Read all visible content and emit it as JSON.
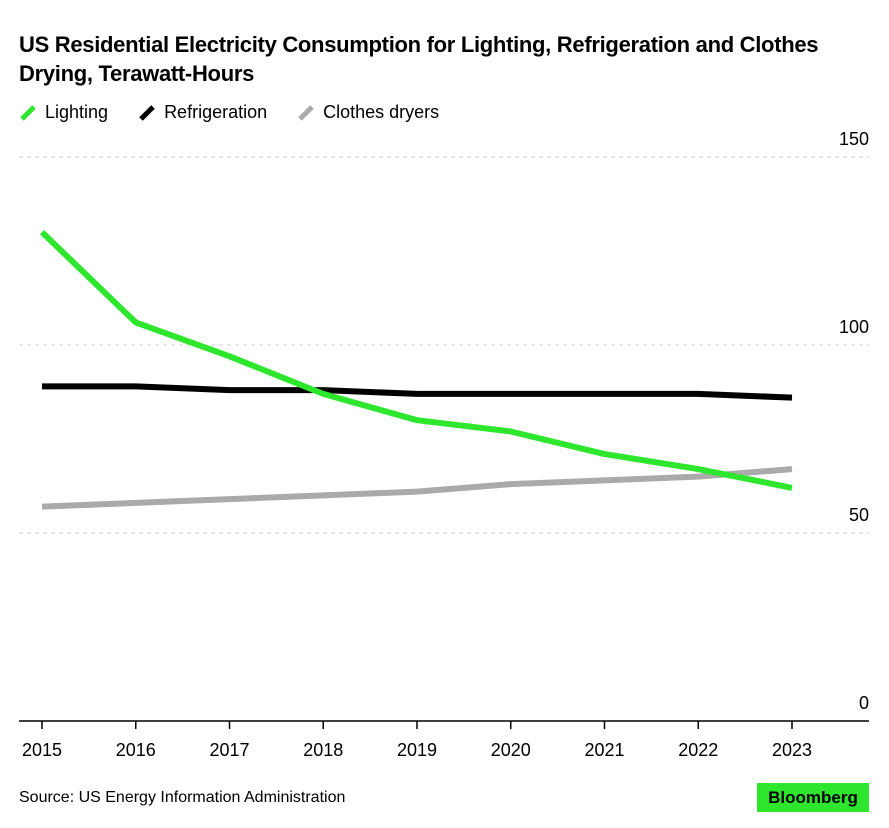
{
  "title": "US Residential Electricity Consumption for Lighting, Refrigeration and Clothes Drying, Terawatt-Hours",
  "source": "Source: US Energy Information Administration",
  "brand": "Bloomberg",
  "colors": {
    "lighting": "#2ee62e",
    "refrigeration": "#000000",
    "clothes_dryers": "#aaaaaa",
    "brand_bg": "#2ee62e",
    "grid": "#cccccc"
  },
  "chart_data": {
    "type": "line",
    "title": "US Residential Electricity Consumption for Lighting, Refrigeration and Clothes Drying, Terawatt-Hours",
    "xlabel": "",
    "ylabel": "",
    "x": [
      "2015",
      "2016",
      "2017",
      "2018",
      "2019",
      "2020",
      "2021",
      "2022",
      "2023"
    ],
    "ylim": [
      0,
      150
    ],
    "yticks": [
      0,
      50,
      100,
      150
    ],
    "grid": true,
    "legend_position": "top-left",
    "series": [
      {
        "name": "Lighting",
        "color": "#2ee62e",
        "values": [
          130,
          106,
          97,
          87,
          80,
          77,
          71,
          67,
          62
        ]
      },
      {
        "name": "Refrigeration",
        "color": "#000000",
        "values": [
          89,
          89,
          88,
          88,
          87,
          87,
          87,
          87,
          86
        ]
      },
      {
        "name": "Clothes dryers",
        "color": "#aaaaaa",
        "values": [
          57,
          58,
          59,
          60,
          61,
          63,
          64,
          65,
          67
        ]
      }
    ]
  }
}
